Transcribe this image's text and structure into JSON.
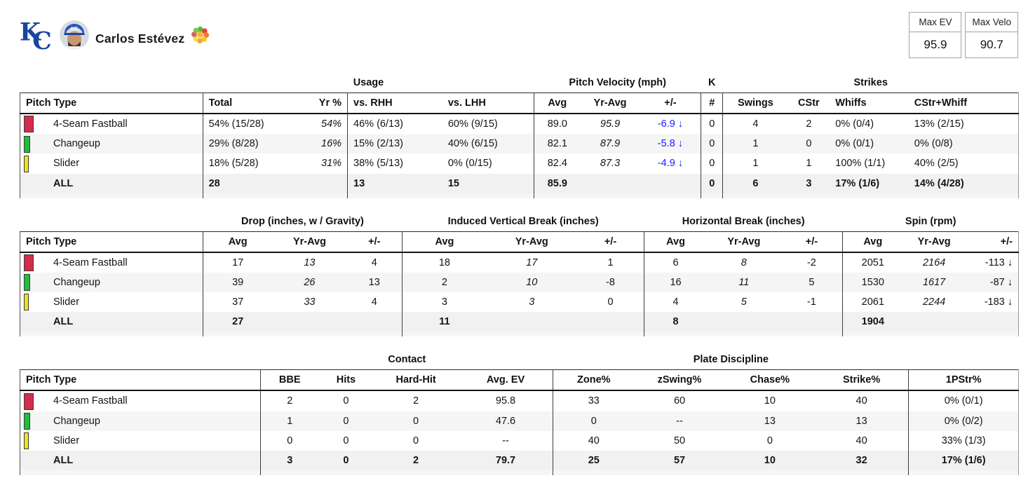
{
  "header": {
    "team": "KC",
    "player_name": "Carlos Estévez",
    "icons": {
      "team_logo": "kc-royals-logo",
      "avatar": "player-headshot",
      "pitch_mix": "pitch-mix-wheel"
    }
  },
  "stat_boxes": [
    {
      "label": "Max EV",
      "value": "95.9"
    },
    {
      "label": "Max Velo",
      "value": "90.7"
    }
  ],
  "colors": {
    "fourseam_red": "#D22D49",
    "changeup_green": "#1DBE3A",
    "slider_yellow": "#EDE41C",
    "delta_blue": "#1A1AFF",
    "royals_blue": "#17469E"
  },
  "chart_data": [
    {
      "type": "table",
      "name": "usage-velocity-strikes",
      "groups": [
        {
          "label": "",
          "span": 1
        },
        {
          "label": "Usage",
          "span": 4
        },
        {
          "label": "Pitch Velocity (mph)",
          "span": 3
        },
        {
          "label": "K",
          "span": 1
        },
        {
          "label": "Strikes",
          "span": 4
        }
      ],
      "columns": [
        {
          "label": "Pitch Type",
          "w": 18.3,
          "align": "left"
        },
        {
          "label": "Total",
          "w": 9.5,
          "align": "left",
          "sep": true
        },
        {
          "label": "Yr %",
          "w": 5.0,
          "align": "right",
          "italic": true
        },
        {
          "label": "vs. RHH",
          "w": 9.5,
          "align": "left",
          "sep": true
        },
        {
          "label": "vs. LHH",
          "w": 9.2,
          "align": "left"
        },
        {
          "label": "Avg",
          "w": 4.6,
          "align": "center",
          "sep": true
        },
        {
          "label": "Yr-Avg",
          "w": 6.0,
          "align": "center",
          "italic": true
        },
        {
          "label": "+/-",
          "w": 6.1,
          "align": "center",
          "blue": true
        },
        {
          "label": "#",
          "w": 2.2,
          "align": "center",
          "sep": true
        },
        {
          "label": "Swings",
          "w": 6.5,
          "align": "center",
          "sep": true
        },
        {
          "label": "CStr",
          "w": 4.2,
          "align": "center"
        },
        {
          "label": "Whiffs",
          "w": 7.9,
          "align": "left"
        },
        {
          "label": "CStr+Whiff",
          "w": 11.0,
          "align": "left"
        }
      ],
      "rows": [
        {
          "pitch": "4-Seam Fastball",
          "swatch_color": "#D22D49",
          "swatch_w": 14,
          "values": [
            "54% (15/28)",
            "54%",
            "46% (6/13)",
            "60% (9/15)",
            "89.0",
            "95.9",
            "-6.9 ↓",
            "0",
            "4",
            "2",
            "0% (0/4)",
            "13% (2/15)"
          ]
        },
        {
          "pitch": "Changeup",
          "swatch_color": "#1DBE3A",
          "swatch_w": 9,
          "values": [
            "29% (8/28)",
            "16%",
            "15% (2/13)",
            "40% (6/15)",
            "82.1",
            "87.9",
            "-5.8 ↓",
            "0",
            "1",
            "0",
            "0% (0/1)",
            "0% (0/8)"
          ]
        },
        {
          "pitch": "Slider",
          "swatch_color": "#EDE41C",
          "swatch_w": 7,
          "values": [
            "18% (5/28)",
            "31%",
            "38% (5/13)",
            "0% (0/15)",
            "82.4",
            "87.3",
            "-4.9 ↓",
            "0",
            "1",
            "1",
            "100% (1/1)",
            "40% (2/5)"
          ]
        },
        {
          "pitch": "ALL",
          "all": true,
          "values": [
            "28",
            "",
            "13",
            "15",
            "85.9",
            "",
            "",
            "0",
            "6",
            "3",
            "17% (1/6)",
            "14% (4/28)"
          ]
        }
      ]
    },
    {
      "type": "table",
      "name": "movement-spin",
      "groups": [
        {
          "label": "",
          "span": 1
        },
        {
          "label": "Drop (inches, w / Gravity)",
          "span": 3
        },
        {
          "label": "Induced Vertical Break (inches)",
          "span": 3
        },
        {
          "label": "Horizontal Break (inches)",
          "span": 3
        },
        {
          "label": "Spin (rpm)",
          "span": 3
        }
      ],
      "columns": [
        {
          "label": "Pitch Type",
          "w": 18.3,
          "align": "left"
        },
        {
          "label": "Avg",
          "w": 7.0,
          "align": "center",
          "sep": true
        },
        {
          "label": "Yr-Avg",
          "w": 7.4,
          "align": "center",
          "italic": true
        },
        {
          "label": "+/-",
          "w": 5.6,
          "align": "center"
        },
        {
          "label": "Avg",
          "w": 8.4,
          "align": "center",
          "sep": true
        },
        {
          "label": "Yr-Avg",
          "w": 9.1,
          "align": "center",
          "italic": true
        },
        {
          "label": "+/-",
          "w": 6.7,
          "align": "center"
        },
        {
          "label": "Avg",
          "w": 6.3,
          "align": "center",
          "sep": true
        },
        {
          "label": "Yr-Avg",
          "w": 7.4,
          "align": "center",
          "italic": true
        },
        {
          "label": "+/-",
          "w": 6.2,
          "align": "center"
        },
        {
          "label": "Avg",
          "w": 6.0,
          "align": "center",
          "sep": true
        },
        {
          "label": "Yr-Avg",
          "w": 6.3,
          "align": "center",
          "italic": true
        },
        {
          "label": "+/-",
          "w": 5.3,
          "align": "right"
        }
      ],
      "rows": [
        {
          "pitch": "4-Seam Fastball",
          "swatch_color": "#D22D49",
          "swatch_w": 14,
          "values": [
            "17",
            "13",
            "4",
            "18",
            "17",
            "1",
            "6",
            "8",
            "-2",
            "2051",
            "2164",
            "-113 ↓"
          ]
        },
        {
          "pitch": "Changeup",
          "swatch_color": "#1DBE3A",
          "swatch_w": 9,
          "values": [
            "39",
            "26",
            "13",
            "2",
            "10",
            "-8",
            "16",
            "11",
            "5",
            "1530",
            "1617",
            "-87 ↓"
          ]
        },
        {
          "pitch": "Slider",
          "swatch_color": "#EDE41C",
          "swatch_w": 7,
          "values": [
            "37",
            "33",
            "4",
            "3",
            "3",
            "0",
            "4",
            "5",
            "-1",
            "2061",
            "2244",
            "-183 ↓"
          ]
        },
        {
          "pitch": "ALL",
          "all": true,
          "values": [
            "27",
            "",
            "",
            "11",
            "",
            "",
            "8",
            "",
            "",
            "1904",
            "",
            ""
          ]
        }
      ]
    },
    {
      "type": "table",
      "name": "contact-plate-discipline",
      "groups": [
        {
          "label": "",
          "span": 1
        },
        {
          "label": "Contact",
          "span": 4
        },
        {
          "label": "Plate Discipline",
          "span": 4
        },
        {
          "label": "",
          "span": 1
        }
      ],
      "columns": [
        {
          "label": "Pitch Type",
          "w": 24.1,
          "align": "left"
        },
        {
          "label": "BBE",
          "w": 5.8,
          "align": "center",
          "sep": true
        },
        {
          "label": "Hits",
          "w": 5.5,
          "align": "center"
        },
        {
          "label": "Hard-Hit",
          "w": 8.5,
          "align": "center"
        },
        {
          "label": "Avg. EV",
          "w": 9.5,
          "align": "center"
        },
        {
          "label": "Zone%",
          "w": 8.1,
          "align": "center",
          "sep": true
        },
        {
          "label": "zSwing%",
          "w": 9.1,
          "align": "center"
        },
        {
          "label": "Chase%",
          "w": 9.0,
          "align": "center"
        },
        {
          "label": "Strike%",
          "w": 9.4,
          "align": "center"
        },
        {
          "label": "1PStr%",
          "w": 11.0,
          "align": "center",
          "sep": true
        }
      ],
      "rows": [
        {
          "pitch": "4-Seam Fastball",
          "swatch_color": "#D22D49",
          "swatch_w": 14,
          "values": [
            "2",
            "0",
            "2",
            "95.8",
            "33",
            "60",
            "10",
            "40",
            "0% (0/1)"
          ]
        },
        {
          "pitch": "Changeup",
          "swatch_color": "#1DBE3A",
          "swatch_w": 9,
          "values": [
            "1",
            "0",
            "0",
            "47.6",
            "0",
            "--",
            "13",
            "13",
            "0% (0/2)"
          ]
        },
        {
          "pitch": "Slider",
          "swatch_color": "#EDE41C",
          "swatch_w": 7,
          "values": [
            "0",
            "0",
            "0",
            "--",
            "40",
            "50",
            "0",
            "40",
            "33% (1/3)"
          ]
        },
        {
          "pitch": "ALL",
          "all": true,
          "values": [
            "3",
            "0",
            "2",
            "79.7",
            "25",
            "57",
            "10",
            "32",
            "17% (1/6)"
          ]
        }
      ]
    }
  ]
}
